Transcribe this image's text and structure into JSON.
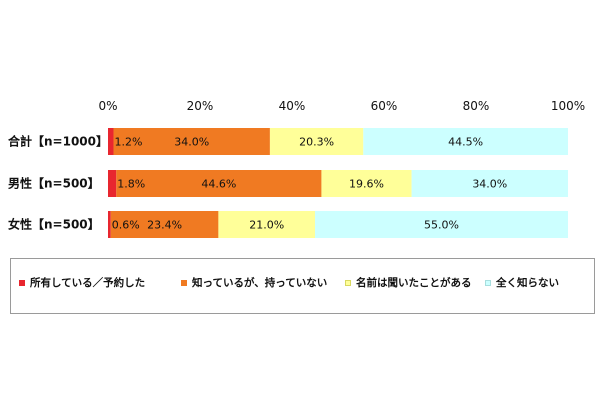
{
  "chart_data": {
    "type": "bar",
    "stacked": true,
    "orientation": "horizontal",
    "categories": [
      "合計【n=1000】",
      "男性【n=500】",
      "女性【n=500】"
    ],
    "series": [
      {
        "name": "所有している／予約した",
        "values": [
          1.2,
          1.8,
          0.6
        ],
        "labels": [
          "1.2%",
          "1.8%",
          "0.6%"
        ],
        "color": "#e8262f"
      },
      {
        "name": "知っているが、持っていない",
        "values": [
          34.0,
          44.6,
          23.4
        ],
        "labels": [
          "34.0%",
          "44.6%",
          "23.4%"
        ],
        "color": "#f07a22"
      },
      {
        "name": "名前は聞いたことがある",
        "values": [
          20.3,
          19.6,
          21.0
        ],
        "labels": [
          "20.3%",
          "19.6%",
          "21.0%"
        ],
        "color": "#ffff99"
      },
      {
        "name": "全く知らない",
        "values": [
          44.5,
          34.0,
          55.0
        ],
        "labels": [
          "44.5%",
          "34.0%",
          "55.0%"
        ],
        "color": "#ccffff"
      }
    ],
    "xlim": [
      0,
      100
    ],
    "xticks": [
      "0%",
      "20%",
      "40%",
      "60%",
      "80%",
      "100%"
    ],
    "grid": false,
    "legend": "bottom"
  }
}
